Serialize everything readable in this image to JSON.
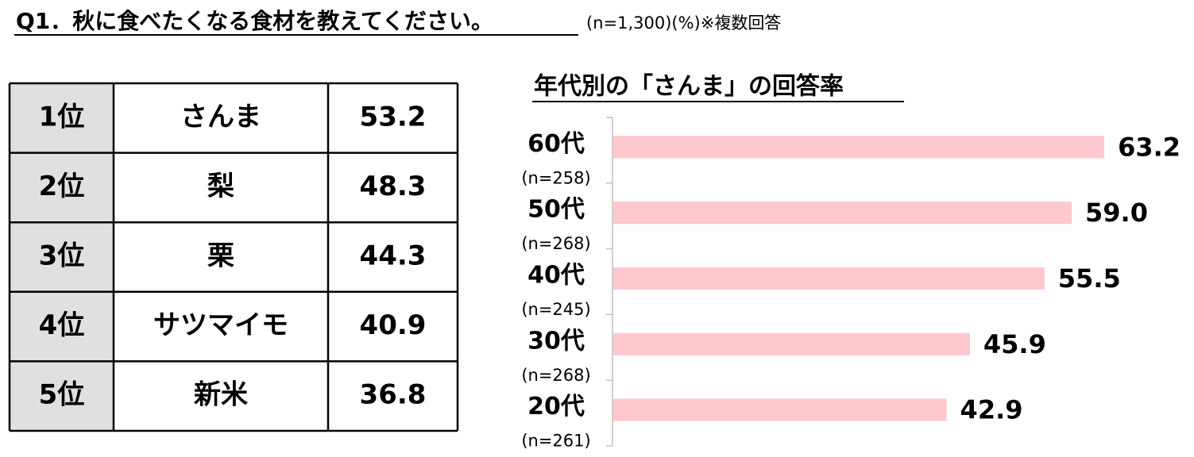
{
  "header": {
    "title": "Q1．秋に食べたくなる食材を教えてください。",
    "note": "(n=1,300)(%)※複数回答"
  },
  "table": {
    "rows": [
      [
        "1位",
        "さんま",
        53.2
      ],
      [
        "2位",
        "梨",
        48.3
      ],
      [
        "3位",
        "栗",
        44.3
      ],
      [
        "4位",
        "サツマイモ",
        40.9
      ],
      [
        "5位",
        "新米",
        36.8
      ]
    ]
  },
  "chart_data": {
    "type": "bar",
    "orientation": "horizontal",
    "title": "年代別の「さんま」の回答率",
    "categories": [
      "60代",
      "50代",
      "40代",
      "30代",
      "20代"
    ],
    "category_notes": [
      "(n=258)",
      "(n=268)",
      "(n=245)",
      "(n=268)",
      "(n=261)"
    ],
    "values": [
      63.2,
      59.0,
      55.5,
      45.9,
      42.9
    ],
    "value_labels": [
      "63.2",
      "59.0",
      "55.5",
      "45.9",
      "42.9"
    ],
    "color": "#ffc7ce"
  }
}
